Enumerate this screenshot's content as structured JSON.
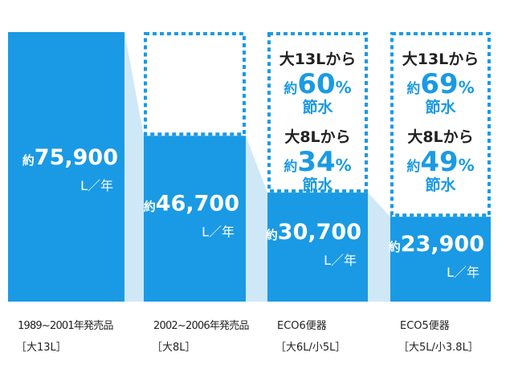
{
  "chart_data": {
    "type": "bar",
    "unit": "L／年",
    "value_prefix": "約",
    "colors": {
      "bar": "#1a9ae4",
      "connector": "#cfe8f7",
      "dashed_box": "#1a9ae4",
      "percent_text": "#1a9ae4",
      "text": "#222222"
    },
    "ylim": [
      0,
      75900
    ],
    "categories": [
      {
        "line1": "1989~2001年発売品",
        "line2": "［大13L］"
      },
      {
        "line1": "2002~2006年発売品",
        "line2": "［大8L］"
      },
      {
        "line1": "ECO6便器",
        "line2": "［大6L/小5L］"
      },
      {
        "line1": "ECO5便器",
        "line2": "［大5L/小3.8L］"
      }
    ],
    "values": [
      75900,
      46700,
      30700,
      23900
    ],
    "value_labels": [
      "75,900",
      "46,700",
      "30,700",
      "23,900"
    ],
    "savings": [
      null,
      null,
      [
        {
          "from": "大13Lから",
          "percent": "60",
          "suffix": "節水"
        },
        {
          "from": "大8Lから",
          "percent": "34",
          "suffix": "節水"
        }
      ],
      [
        {
          "from": "大13Lから",
          "percent": "69",
          "suffix": "節水"
        },
        {
          "from": "大8Lから",
          "percent": "49",
          "suffix": "節水"
        }
      ]
    ],
    "percent_sign": "%",
    "approx": "約"
  }
}
